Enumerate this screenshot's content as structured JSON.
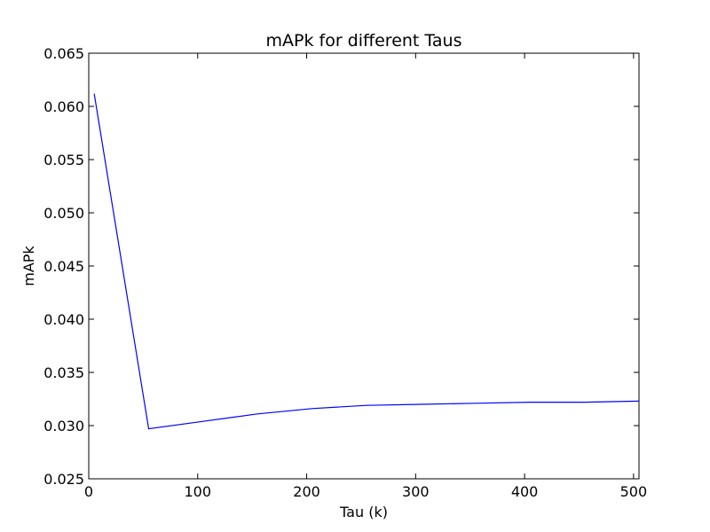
{
  "chart_data": {
    "type": "line",
    "title": "mAPk for different Taus",
    "xlabel": "Tau (k)",
    "ylabel": "mAPk",
    "xlim": [
      0,
      505
    ],
    "ylim": [
      0.025,
      0.065
    ],
    "x_ticks": [
      0,
      100,
      200,
      300,
      400,
      500
    ],
    "y_ticks": [
      0.025,
      0.03,
      0.035,
      0.04,
      0.045,
      0.05,
      0.055,
      0.06,
      0.065
    ],
    "x_tick_labels": [
      "0",
      "100",
      "200",
      "300",
      "400",
      "500"
    ],
    "y_tick_labels": [
      "0.025",
      "0.030",
      "0.035",
      "0.040",
      "0.045",
      "0.050",
      "0.055",
      "0.060",
      "0.065"
    ],
    "grid": false,
    "series": [
      {
        "color": "#0000ff",
        "x": [
          5,
          55,
          105,
          155,
          205,
          255,
          305,
          355,
          405,
          455,
          505
        ],
        "y": [
          0.0612,
          0.0297,
          0.0304,
          0.0311,
          0.0316,
          0.0319,
          0.032,
          0.0321,
          0.0322,
          0.0322,
          0.0323
        ]
      }
    ]
  }
}
